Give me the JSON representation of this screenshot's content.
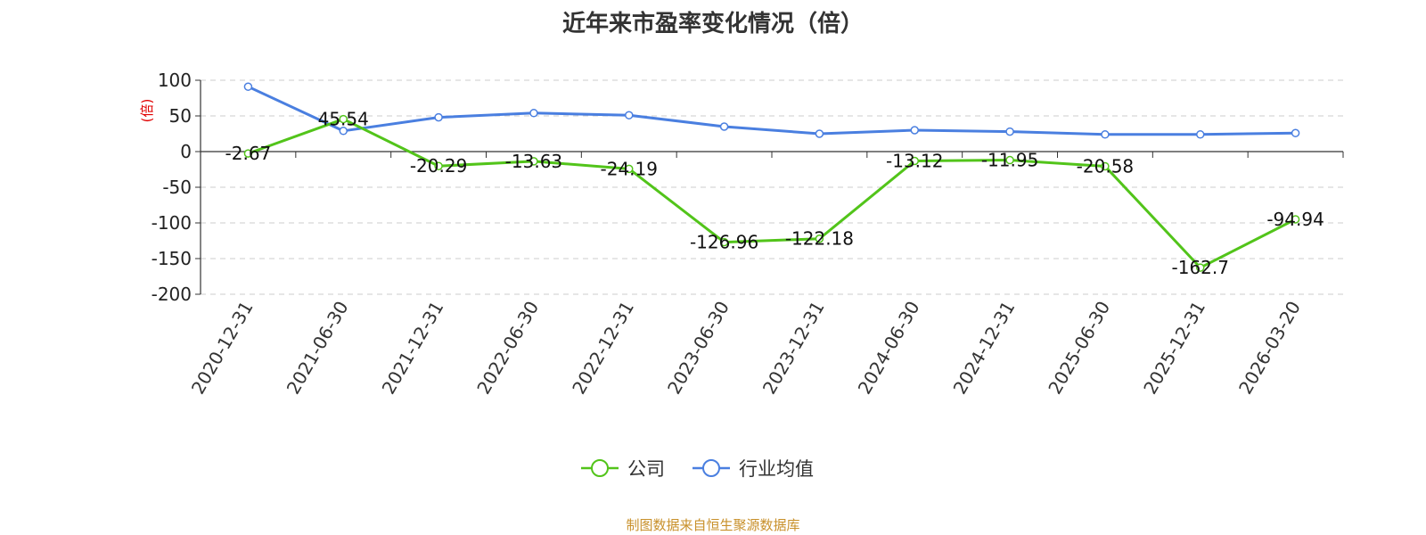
{
  "source_note": "制图数据来自恒生聚源数据库",
  "chart_data": {
    "type": "line",
    "title": "近年来市盈率变化情况（倍）",
    "ylabel": "(倍)",
    "ylim": [
      -200,
      100
    ],
    "yticks": [
      100,
      50,
      0,
      -50,
      -100,
      -150,
      -200
    ],
    "grid": true,
    "legend_position": "bottom-center",
    "categories": [
      "2020-12-31",
      "2021-06-30",
      "2021-12-31",
      "2022-06-30",
      "2022-12-31",
      "2023-06-30",
      "2023-12-31",
      "2024-06-30",
      "2024-12-31",
      "2025-06-30",
      "2025-12-31",
      "2026-03-20"
    ],
    "series": [
      {
        "name": "公司",
        "color": "#52c41a",
        "values": [
          -2.67,
          45.54,
          -20.29,
          -13.63,
          -24.19,
          -126.96,
          -122.18,
          -13.12,
          -11.95,
          -20.58,
          -162.7,
          -94.94
        ],
        "labels": [
          "-2.67",
          "45.54",
          "-20.29",
          "-13.63",
          "-24.19",
          "-126.96",
          "-122.18",
          "-13.12",
          "-11.95",
          "-20.58",
          "-162.7",
          "-94.94"
        ]
      },
      {
        "name": "行业均值",
        "color": "#4a7fe0",
        "values": [
          91,
          29,
          48,
          54,
          51,
          35,
          25,
          30,
          28,
          24,
          24,
          26
        ]
      }
    ]
  }
}
